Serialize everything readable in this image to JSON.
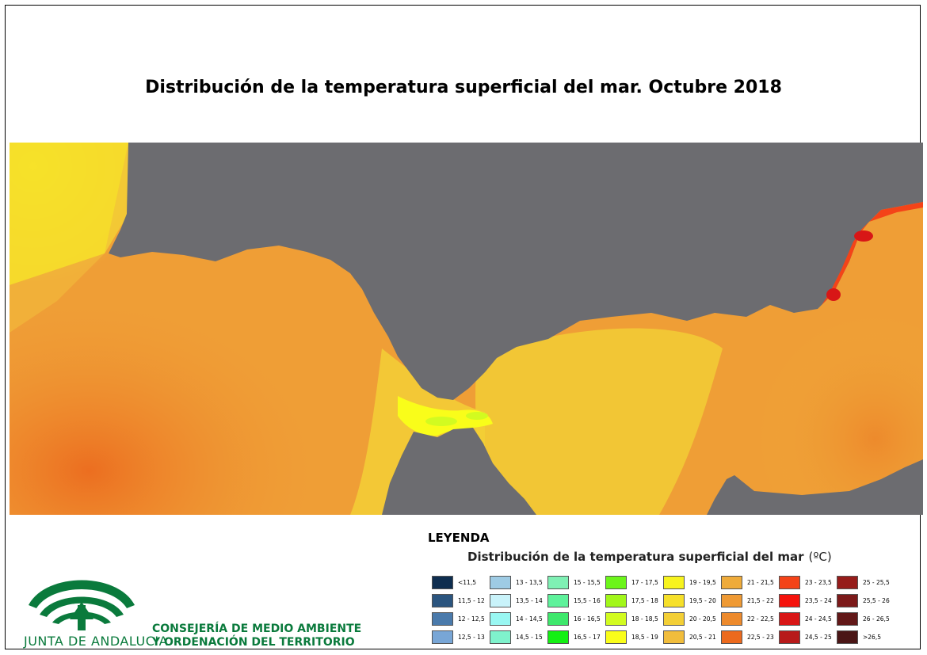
{
  "title": "Distribución de la temperatura superficial del mar. Octubre 2018",
  "legend": {
    "heading": "LEYENDA",
    "subtitle": "Distribución de la temperatura superficial del mar",
    "unit": "(ºC)",
    "classes": [
      {
        "label": "<11,5",
        "color": "#0e2d4f"
      },
      {
        "label": "11,5 - 12",
        "color": "#2b557f"
      },
      {
        "label": "12 - 12,5",
        "color": "#4a7aab"
      },
      {
        "label": "12,5 - 13",
        "color": "#78a6d6"
      },
      {
        "label": "13 - 13,5",
        "color": "#9ecbe4"
      },
      {
        "label": "13,5 - 14",
        "color": "#c9f3fa"
      },
      {
        "label": "14 - 14,5",
        "color": "#99f7f2"
      },
      {
        "label": "14,5 - 15",
        "color": "#7ff2cc"
      },
      {
        "label": "15 - 15,5",
        "color": "#7ff0b4"
      },
      {
        "label": "15,5 - 16",
        "color": "#5ef29b"
      },
      {
        "label": "16 - 16,5",
        "color": "#3ee86c"
      },
      {
        "label": "16,5 - 17",
        "color": "#14f014"
      },
      {
        "label": "17 - 17,5",
        "color": "#6cf51a"
      },
      {
        "label": "17,5 - 18",
        "color": "#a2f71a"
      },
      {
        "label": "18 - 18,5",
        "color": "#d2fb20"
      },
      {
        "label": "18,5 - 19",
        "color": "#f9fd1a"
      },
      {
        "label": "19 - 19,5",
        "color": "#f7f31e"
      },
      {
        "label": "19,5 - 20",
        "color": "#f6e02a"
      },
      {
        "label": "20 - 20,5",
        "color": "#f3cf36"
      },
      {
        "label": "20,5 - 21",
        "color": "#f1bd3c"
      },
      {
        "label": "21 - 21,5",
        "color": "#efab3a"
      },
      {
        "label": "21,5 - 22",
        "color": "#ef9a34"
      },
      {
        "label": "22 - 22,5",
        "color": "#ed8a2c"
      },
      {
        "label": "22,5 - 23",
        "color": "#ec6a1e"
      },
      {
        "label": "23 - 23,5",
        "color": "#f44318"
      },
      {
        "label": "23,5 - 24",
        "color": "#f5130c"
      },
      {
        "label": "24 - 24,5",
        "color": "#d81616"
      },
      {
        "label": "24,5 - 25",
        "color": "#b71a1a"
      },
      {
        "label": "25 - 25,5",
        "color": "#961c1a"
      },
      {
        "label": "25,5 - 26",
        "color": "#7c1a1a"
      },
      {
        "label": "26 - 26,5",
        "color": "#621818"
      },
      {
        "label": ">26,5",
        "color": "#4a1616"
      }
    ]
  },
  "organization": {
    "logo_text": "JUNTA DE ANDALUCIA",
    "line1": "CONSEJERÍA DE MEDIO AMBIENTE",
    "line2": "Y ORDENACIÓN DEL TERRITORIO",
    "color": "#0a7a3c"
  },
  "map": {
    "land_color": "#6c6c70"
  }
}
